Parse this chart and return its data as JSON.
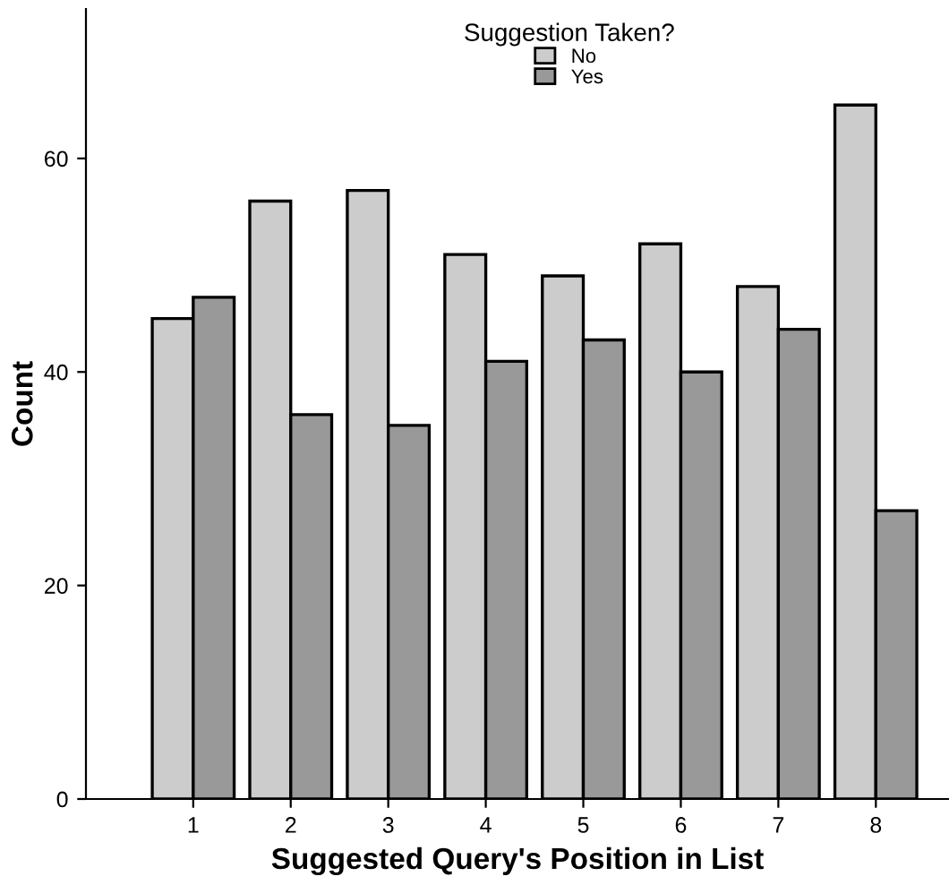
{
  "chart_data": {
    "type": "bar",
    "xlabel": "Suggested Query's Position in List",
    "ylabel": "Count",
    "categories": [
      "1",
      "2",
      "3",
      "4",
      "5",
      "6",
      "7",
      "8"
    ],
    "series": [
      {
        "name": "No",
        "color": "#cccccc",
        "values": [
          45,
          56,
          57,
          51,
          49,
          52,
          48,
          65
        ]
      },
      {
        "name": "Yes",
        "color": "#999999",
        "values": [
          47,
          36,
          35,
          41,
          43,
          40,
          44,
          27
        ]
      }
    ],
    "legend_title": "Suggestion Taken?",
    "legend": "top",
    "ylim": [
      0,
      74
    ],
    "yticks": [
      0,
      20,
      40,
      60
    ],
    "grid": false
  }
}
